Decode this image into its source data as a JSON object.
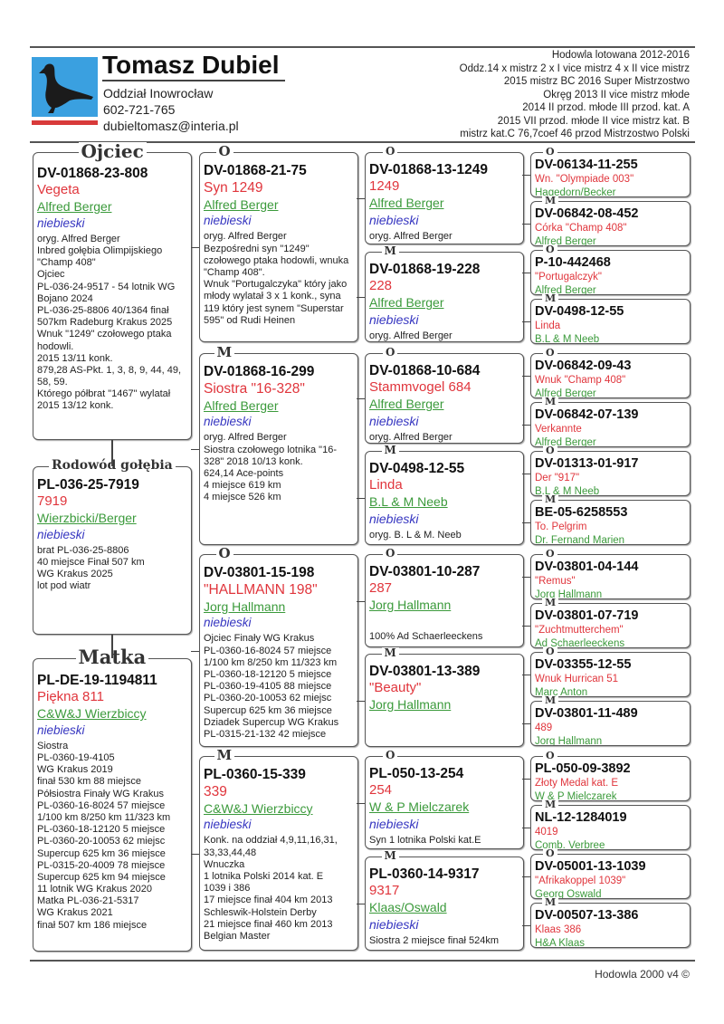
{
  "header": {
    "breeder_name": "Tomasz Dubiel",
    "branch": "Oddział Inowrocław",
    "phone": "602-721-765",
    "email": "dubieltomasz@interia.pl",
    "achievements": [
      "Hodowla lotowana 2012-2016",
      "Oddz.14 x mistrz 2 x I vice mistrz 4 x II vice mistrz",
      "2015 mistrz BC 2016 Super Mistrzostwo",
      "Okręg 2013 II vice mistrz młode",
      "2014 II przod. młode III przod. kat. A",
      "2015 VII przod. młode II vice mistrz kat. B",
      "mistrz kat.C 76,7coef 46 przod Mistrzostwo Polski"
    ],
    "logo_icon": "pigeon-silhouette-icon",
    "colors": {
      "logo_bg": "#3aa0e0",
      "logo_bar": "#d83a3a"
    }
  },
  "colors": {
    "name": "#e0353c",
    "owner": "#3b9a3b",
    "color": "#3535c0"
  },
  "pedigree": {
    "col1": [
      {
        "title": "Ojciec",
        "ring": "DV-01868-23-808",
        "name": "Vegeta",
        "owner": "Alfred Berger",
        "color": "niebieski",
        "notes": "oryg. Alfred Berger\nInbred gołębia Olimpijskiego \"Champ 408\"\nOjciec\nPL-036-24-9517 - 54 lotnik WG Bojano 2024\nPL-036-25-8806  40/1364 finał 507km Radeburg Krakus 2025\nWnuk \"1249\" czołowego ptaka hodowli.\n2015 13/11 konk.\n879,28 AS-Pkt. 1, 3, 8, 9, 44, 49, 58, 59.\nKtórego półbrat \"1467\" wylatał 2015 13/12 konk."
      },
      {
        "title": "Rodowód gołębia",
        "ring": "PL-036-25-7919",
        "name": "7919",
        "owner": "Wierzbicki/Berger",
        "color": "niebieski",
        "notes": "brat PL-036-25-8806\n40 miejsce Finał 507 km\nWG Krakus 2025\nlot pod wiatr"
      },
      {
        "title": "Matka",
        "ring": "PL-DE-19-1194811",
        "name": "Piękna 811",
        "owner": "C&W&J Wierzbiccy",
        "color": "niebieski",
        "notes": "Siostra\nPL-0360-19-4105\nWG Krakus 2019\nfinał 530 km 88 miejsce\nPółsiostra  Finały WG Krakus\nPL-0360-16-8024  57 miejsce\n1/100 km 8/250 km 11/323 km\nPL-0360-18-12120  5 miejsce\nPL-0360-20-10053  62 miejsc\nSupercup 625 km  36 miejsce\nPL-0315-20-4009  78 miejsce\nSupercup 625 km  94 miejsce\n11 lotnik WG Krakus 2020\nMatka  PL-036-21-5317\nWG Krakus 2021\nfinał 507 km 186 miejsce"
      }
    ],
    "col2": [
      {
        "title": "O",
        "ring": "DV-01868-21-75",
        "name": "Syn 1249",
        "owner": "Alfred Berger",
        "color": "niebieski",
        "notes": "oryg. Alfred Berger\nBezpośredni syn \"1249\" czołowego ptaka hodowli, wnuka \"Champ 408\".\nWnuk \"Portugalczyka\" który jako młody wylatał 3 x 1 konk., syna 119 który jest synem \"Superstar 595\" od Rudi Heinen"
      },
      {
        "title": "M",
        "ring": "DV-01868-16-299",
        "name": "Siostra \"16-328\"",
        "owner": "Alfred Berger",
        "color": "niebieski",
        "notes": "oryg. Alfred Berger\nSiostra czołowego lotnika \"16-328\" 2018 10/13 konk.\n624,14 Ace-points\n4 miejsce 619 km\n4 miejsce 526 km"
      },
      {
        "title": "O",
        "ring": "DV-03801-15-198",
        "name": "\"HALLMANN 198\"",
        "owner": "Jorg Hallmann",
        "color": "niebieski",
        "notes": "Ojciec Finały WG Krakus\nPL-0360-16-8024  57 miejsce\n1/100 km 8/250 km 11/323 km\nPL-0360-18-12120  5 miejsce\nPL-0360-19-4105  88 miejsce\nPL-0360-20-10053  62 miejsc\nSupercup 625 km  36 miejsce\nDziadek Supercup WG Krakus\nPL-0315-21-132  42 miejsce"
      },
      {
        "title": "M",
        "ring": "PL-0360-15-339",
        "name": "339",
        "owner": "C&W&J Wierzbiccy",
        "color": "niebieski",
        "notes": "Konk. na oddział 4,9,11,16,31, 33,33,44,48\nWnuczka\n1 lotnika Polski 2014 kat. E\n1039 i 386\n17 miejsce finał 404 km 2013\nSchleswik-Holstein Derby\n21 miejsce finał 460 km 2013\nBelgian Master"
      }
    ],
    "col3": [
      {
        "title": "O",
        "ring": "DV-01868-13-1249",
        "name": "1249",
        "owner": "Alfred Berger",
        "color": "niebieski",
        "notes": "oryg. Alfred Berger"
      },
      {
        "title": "M",
        "ring": "DV-01868-19-228",
        "name": "228",
        "owner": "Alfred Berger",
        "color": "niebieski",
        "notes": "oryg. Alfred Berger"
      },
      {
        "title": "O",
        "ring": "DV-01868-10-684",
        "name": "Stammvogel 684",
        "owner": "Alfred Berger",
        "color": "niebieski",
        "notes": "oryg. Alfred Berger"
      },
      {
        "title": "M",
        "ring": "DV-0498-12-55",
        "name": "Linda",
        "owner": "B.L & M Neeb",
        "color": "niebieski",
        "notes": "oryg. B. L & M. Neeb"
      },
      {
        "title": "O",
        "ring": "DV-03801-10-287",
        "name": "287",
        "owner": "Jorg Hallmann",
        "color": "",
        "notes": "\n100% Ad Schaerleeckens"
      },
      {
        "title": "M",
        "ring": "DV-03801-13-389",
        "name": "\"Beauty\"",
        "owner": "Jorg Hallmann",
        "color": "",
        "notes": ""
      },
      {
        "title": "O",
        "ring": "PL-050-13-254",
        "name": "254",
        "owner": "W & P Mielczarek",
        "color": "niebieski",
        "notes": "Syn 1 lotnika Polski kat.E"
      },
      {
        "title": "M",
        "ring": "PL-0360-14-9317",
        "name": "9317",
        "owner": "Klaas/Oswald",
        "color": "niebieski",
        "notes": "Siostra 2 miejsce finał 524km"
      }
    ],
    "col4": [
      {
        "title": "O",
        "ring": "DV-06134-11-255",
        "name": "Wn. \"Olympiade 003\"",
        "owner": "Hagedorn/Becker"
      },
      {
        "title": "M",
        "ring": "DV-06842-08-452",
        "name": "Córka \"Champ 408\"",
        "owner": "Alfred Berger"
      },
      {
        "title": "O",
        "ring": "P-10-442468",
        "name": "\"Portugalczyk\"",
        "owner": "Alfred Berger"
      },
      {
        "title": "M",
        "ring": "DV-0498-12-55",
        "name": "Linda",
        "owner": "B.L & M Neeb"
      },
      {
        "title": "O",
        "ring": "DV-06842-09-43",
        "name": "Wnuk \"Champ 408\"",
        "owner": "Alfred Berger"
      },
      {
        "title": "M",
        "ring": "DV-06842-07-139",
        "name": "Verkannte",
        "owner": "Alfred Berger"
      },
      {
        "title": "O",
        "ring": "DV-01313-01-917",
        "name": "Der \"917\"",
        "owner": "B.L & M Neeb"
      },
      {
        "title": "M",
        "ring": "BE-05-6258553",
        "name": "To. Pelgrim",
        "owner": "Dr. Fernand Marien"
      },
      {
        "title": "O",
        "ring": "DV-03801-04-144",
        "name": "\"Remus\"",
        "owner": "Jorg Hallmann"
      },
      {
        "title": "M",
        "ring": "DV-03801-07-719",
        "name": "\"Zuchtmutterchem\"",
        "owner": "Ad Schaerleeckens"
      },
      {
        "title": "O",
        "ring": "DV-03355-12-55",
        "name": "Wnuk Hurrican 51",
        "owner": "Marc Anton"
      },
      {
        "title": "M",
        "ring": "DV-03801-11-489",
        "name": "489",
        "owner": "Jorg Hallmann"
      },
      {
        "title": "O",
        "ring": "PL-050-09-3892",
        "name": "Złoty Medal kat. E",
        "owner": "W & P Mielczarek"
      },
      {
        "title": "M",
        "ring": "NL-12-1284019",
        "name": "4019",
        "owner": "Comb. Verbree"
      },
      {
        "title": "O",
        "ring": "DV-05001-13-1039",
        "name": "\"Afrikakoppel 1039\"",
        "owner": "Georg Oswald"
      },
      {
        "title": "M",
        "ring": "DV-00507-13-386",
        "name": "Klaas 386",
        "owner": "H&A Klaas"
      }
    ]
  },
  "footer": {
    "text": "Hodowla 2000 v4 ©"
  }
}
